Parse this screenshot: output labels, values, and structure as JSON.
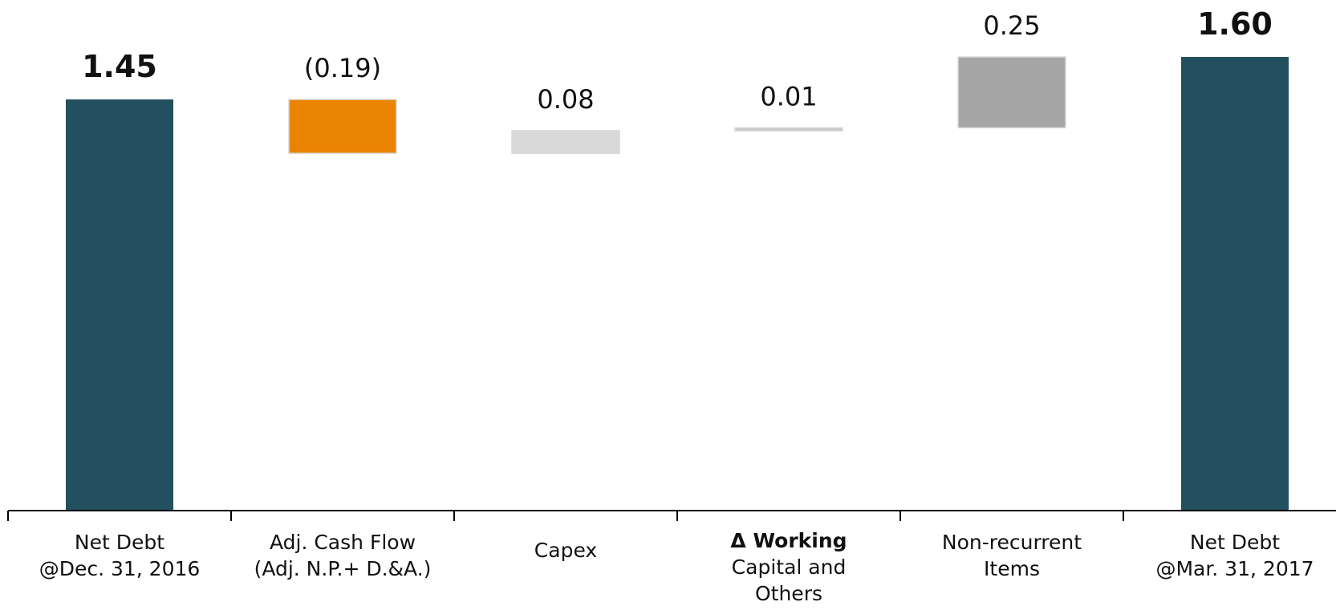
{
  "chart_data": {
    "type": "waterfall",
    "categories": [
      {
        "lines": [
          "Net Debt",
          "@Dec. 31, 2016"
        ]
      },
      {
        "lines": [
          "Adj. Cash Flow",
          "(Adj. N.P.+ D.&A.)"
        ]
      },
      {
        "lines": [
          "Capex"
        ]
      },
      {
        "lines": [
          "Δ Working",
          "Capital and",
          "Others"
        ],
        "bold_first_line": true
      },
      {
        "lines": [
          "Non-recurrent",
          "Items"
        ]
      },
      {
        "lines": [
          "Net Debt",
          "@Mar. 31, 2017"
        ]
      }
    ],
    "values": [
      1.45,
      -0.19,
      0.08,
      0.01,
      0.25,
      1.6
    ],
    "value_labels": [
      "1.45",
      "(0.19)",
      "0.08",
      "0.01",
      "0.25",
      "1.60"
    ],
    "bar_kinds": [
      "total",
      "delta",
      "delta",
      "delta",
      "delta",
      "total"
    ],
    "colors": [
      "#244f5f",
      "#e98300",
      "#d9d9d9",
      "#c8c8c8",
      "#a6a6a6",
      "#244f5f"
    ],
    "label_bold": [
      true,
      false,
      false,
      false,
      false,
      true
    ],
    "ylim": [
      0,
      1.6
    ],
    "grid": false,
    "legend": "none"
  }
}
